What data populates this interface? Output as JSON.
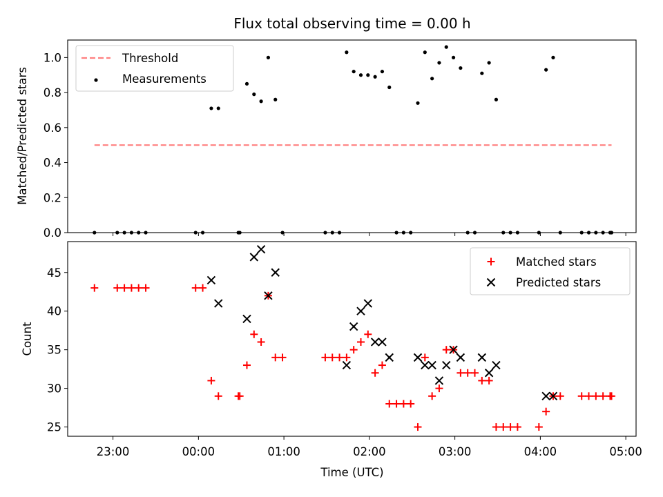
{
  "chart_data": [
    {
      "type": "scatter",
      "title": "Flux total observing time = 0.00 h",
      "xlabel": "",
      "ylabel": "Matched/Predicted stars",
      "ylim": [
        0,
        1.1
      ],
      "yticks": [
        "0.0",
        "0.2",
        "0.4",
        "0.6",
        "0.8",
        "1.0"
      ],
      "grid": false,
      "legend_position": "top-left",
      "series": [
        {
          "name": "Threshold",
          "kind": "line",
          "style": "dashed",
          "color": "#ff7f7f",
          "x": [
            "22:47",
            "04:50"
          ],
          "y": [
            0.5,
            0.5
          ]
        },
        {
          "name": "Measurements",
          "kind": "scatter",
          "marker": "dot",
          "color": "#000000",
          "x": [
            "22:47",
            "23:03",
            "23:08",
            "23:13",
            "23:18",
            "23:23",
            "23:58",
            "00:03",
            "00:09",
            "00:14",
            "00:28",
            "00:29",
            "00:34",
            "00:39",
            "00:44",
            "00:49",
            "00:54",
            "00:59",
            "01:29",
            "01:34",
            "01:39",
            "01:44",
            "01:49",
            "01:54",
            "01:59",
            "02:04",
            "02:09",
            "02:14",
            "02:19",
            "02:24",
            "02:29",
            "02:34",
            "02:39",
            "02:44",
            "02:49",
            "02:54",
            "02:59",
            "03:04",
            "03:09",
            "03:14",
            "03:19",
            "03:24",
            "03:29",
            "03:34",
            "03:39",
            "03:44",
            "03:59",
            "04:04",
            "04:09",
            "04:14",
            "04:29",
            "04:34",
            "04:39",
            "04:44",
            "04:49",
            "04:50"
          ],
          "y": [
            0,
            0,
            0,
            0,
            0,
            0,
            0,
            0,
            0.71,
            0.71,
            0,
            0,
            0.85,
            0.79,
            0.75,
            1.0,
            0.76,
            0,
            0,
            0,
            0,
            1.03,
            0.92,
            0.9,
            0.9,
            0.89,
            0.92,
            0.83,
            0,
            0,
            0,
            0.74,
            1.03,
            0.88,
            0.97,
            1.06,
            1.0,
            0.94,
            0,
            0,
            0.91,
            0.97,
            0.76,
            0,
            0,
            0,
            0,
            0.93,
            1.0,
            0,
            0,
            0,
            0,
            0,
            0,
            0
          ]
        }
      ]
    },
    {
      "type": "scatter",
      "title": "",
      "xlabel": "Time (UTC)",
      "ylabel": "Count",
      "ylim": [
        23.8,
        49
      ],
      "yticks": [
        "25",
        "30",
        "35",
        "40",
        "45"
      ],
      "xticks": [
        "23:00",
        "00:00",
        "01:00",
        "02:00",
        "03:00",
        "04:00",
        "05:00"
      ],
      "grid": false,
      "legend_position": "top-right",
      "series": [
        {
          "name": "Matched stars",
          "marker": "plus",
          "color": "#ff0000",
          "x": [
            "22:47",
            "23:03",
            "23:08",
            "23:13",
            "23:18",
            "23:23",
            "23:58",
            "00:03",
            "00:09",
            "00:14",
            "00:28",
            "00:29",
            "00:34",
            "00:39",
            "00:44",
            "00:49",
            "00:54",
            "00:59",
            "01:29",
            "01:34",
            "01:39",
            "01:44",
            "01:49",
            "01:54",
            "01:59",
            "02:04",
            "02:09",
            "02:14",
            "02:19",
            "02:24",
            "02:29",
            "02:34",
            "02:39",
            "02:44",
            "02:49",
            "02:54",
            "02:59",
            "03:04",
            "03:09",
            "03:14",
            "03:19",
            "03:24",
            "03:29",
            "03:34",
            "03:39",
            "03:44",
            "03:59",
            "04:04",
            "04:09",
            "04:14",
            "04:29",
            "04:34",
            "04:39",
            "04:44",
            "04:49",
            "04:50"
          ],
          "y": [
            43,
            43,
            43,
            43,
            43,
            43,
            43,
            43,
            31,
            29,
            29,
            29,
            33,
            37,
            36,
            42,
            34,
            34,
            34,
            34,
            34,
            34,
            35,
            36,
            37,
            32,
            33,
            28,
            28,
            28,
            28,
            25,
            34,
            29,
            30,
            35,
            35,
            32,
            32,
            32,
            31,
            31,
            25,
            25,
            25,
            25,
            25,
            27,
            29,
            29,
            29,
            29,
            29,
            29,
            29,
            29
          ]
        },
        {
          "name": "Predicted stars",
          "marker": "x",
          "color": "#000000",
          "x": [
            "00:09",
            "00:14",
            "00:34",
            "00:39",
            "00:44",
            "00:49",
            "00:54",
            "01:44",
            "01:49",
            "01:54",
            "01:59",
            "02:04",
            "02:09",
            "02:14",
            "02:34",
            "02:39",
            "02:44",
            "02:49",
            "02:54",
            "02:59",
            "03:04",
            "03:19",
            "03:24",
            "03:29",
            "04:04",
            "04:09"
          ],
          "y": [
            44,
            41,
            39,
            47,
            48,
            42,
            45,
            33,
            38,
            40,
            41,
            36,
            36,
            34,
            34,
            33,
            33,
            31,
            33,
            35,
            34,
            34,
            32,
            33,
            29,
            29
          ]
        }
      ]
    }
  ]
}
